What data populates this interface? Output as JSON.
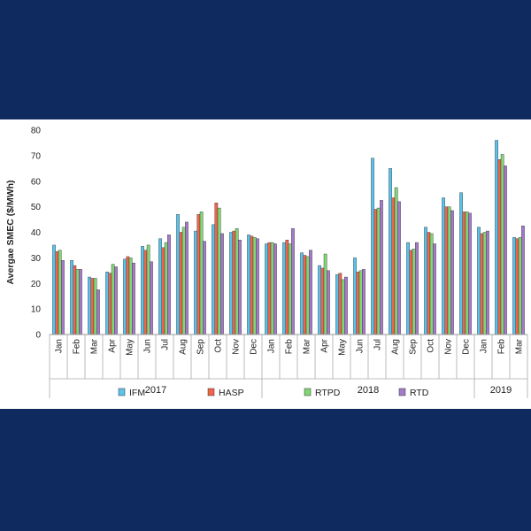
{
  "chart_data": {
    "type": "bar",
    "ylabel": "Avergae SMEC ($/MWh)",
    "ylim": [
      0,
      80
    ],
    "yticks": [
      0,
      10,
      20,
      30,
      40,
      50,
      60,
      70,
      80
    ],
    "grid": false,
    "legend_position": "bottom",
    "categories": [
      "Jan",
      "Feb",
      "Mar",
      "Apr",
      "May",
      "Jun",
      "Jul",
      "Aug",
      "Sep",
      "Oct",
      "Nov",
      "Dec",
      "Jan",
      "Feb",
      "Mar",
      "Apr",
      "May",
      "Jun",
      "Jul",
      "Aug",
      "Sep",
      "Oct",
      "Nov",
      "Dec",
      "Jan",
      "Feb",
      "Mar"
    ],
    "years": [
      {
        "label": "2017",
        "count": 12
      },
      {
        "label": "2018",
        "count": 12
      },
      {
        "label": "2019",
        "count": 3
      }
    ],
    "series": [
      {
        "name": "IFM",
        "color": "#5bc3ea",
        "values": [
          35,
          29,
          22.5,
          24.5,
          29.5,
          34.5,
          37.5,
          47,
          40.5,
          43,
          40,
          39,
          35.5,
          36,
          32,
          27,
          23.5,
          30,
          69,
          65,
          36,
          42,
          53.5,
          55.5,
          42,
          76,
          38
        ]
      },
      {
        "name": "HASP",
        "color": "#f06449",
        "values": [
          32.5,
          27,
          22,
          24,
          30.5,
          33,
          34,
          40,
          47,
          51.5,
          40.5,
          38.5,
          36,
          37,
          31,
          26,
          24,
          24.5,
          49,
          53.5,
          33,
          40,
          50,
          48,
          39.5,
          68.5,
          37.5
        ]
      },
      {
        "name": "RTPD",
        "color": "#7fd672",
        "values": [
          33,
          25.5,
          22,
          27.5,
          30,
          35,
          36,
          42,
          48,
          49.5,
          41.5,
          38,
          36,
          35.5,
          30.5,
          31.5,
          21.5,
          25,
          49.5,
          57.5,
          33.5,
          39.5,
          50,
          48,
          40,
          70.5,
          38
        ]
      },
      {
        "name": "RTD",
        "color": "#a57bc9",
        "values": [
          29,
          25.5,
          17.5,
          26.5,
          28,
          28.5,
          39,
          44,
          36.5,
          39.5,
          37,
          37.5,
          35.5,
          41.5,
          33,
          25,
          22.5,
          25.5,
          52.5,
          52,
          36,
          35.5,
          48.5,
          47.5,
          40.5,
          66,
          42.5
        ]
      }
    ]
  }
}
